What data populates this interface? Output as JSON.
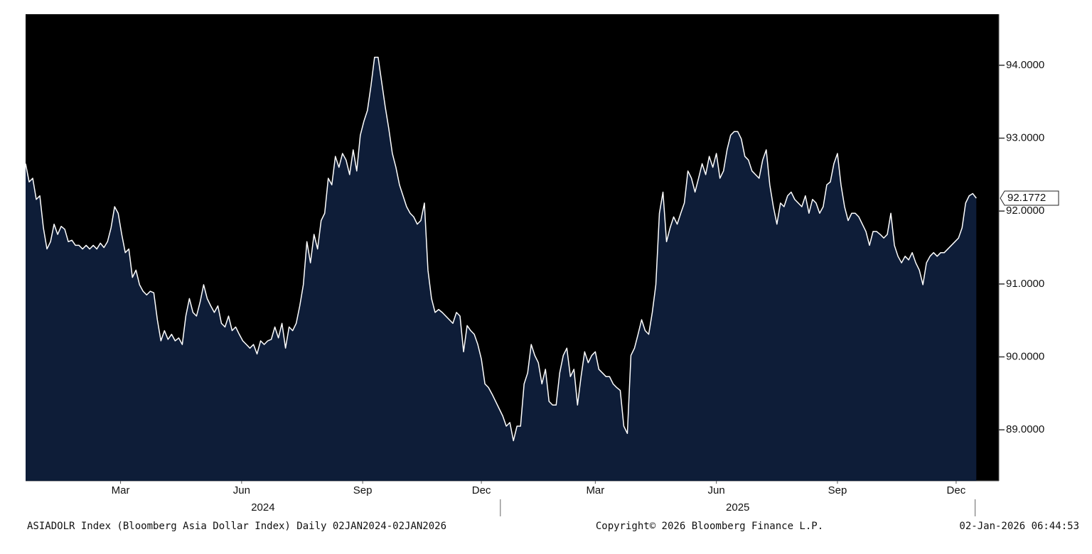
{
  "chart_data": {
    "type": "area",
    "footer_left": "ASIADOLR Index (Bloomberg Asia Dollar Index) Daily 02JAN2024-02JAN2026",
    "footer_center": "Copyright© 2026 Bloomberg Finance L.P.",
    "footer_right": "02-Jan-2026 06:44:53",
    "xlim": [
      2024,
      2026.05
    ],
    "ylim": [
      88.3,
      94.7
    ],
    "yticks": [
      {
        "value": 89,
        "label": "89.0000"
      },
      {
        "value": 90,
        "label": "90.0000"
      },
      {
        "value": 91,
        "label": "91.0000"
      },
      {
        "value": 92,
        "label": "92.0000"
      },
      {
        "value": 93,
        "label": "93.0000"
      },
      {
        "value": 94,
        "label": "94.0000"
      }
    ],
    "xticks": [
      {
        "value": 2024.2,
        "label": "Mar"
      },
      {
        "value": 2024.455,
        "label": "Jun"
      },
      {
        "value": 2024.71,
        "label": "Sep"
      },
      {
        "value": 2024.96,
        "label": "Dec"
      },
      {
        "value": 2025.2,
        "label": "Mar"
      },
      {
        "value": 2025.455,
        "label": "Jun"
      },
      {
        "value": 2025.71,
        "label": "Sep"
      },
      {
        "value": 2025.96,
        "label": "Dec"
      }
    ],
    "year_ticks": [
      {
        "value": 2024.5,
        "label": "2024"
      },
      {
        "value": 2025.5,
        "label": "2025"
      }
    ],
    "year_dividers": [
      2025,
      2026
    ],
    "series": [
      {
        "color": "#ffffff",
        "fill": "#0e1d38",
        "x": [
          2024,
          2024.0075,
          2024.015,
          2024.0225,
          2024.03,
          2024.0375,
          2024.045,
          2024.0525,
          2024.06,
          2024.0675,
          2024.075,
          2024.0825,
          2024.09,
          2024.0975,
          2024.105,
          2024.1125,
          2024.12,
          2024.1275,
          2024.135,
          2024.1425,
          2024.15,
          2024.1575,
          2024.165,
          2024.1725,
          2024.18,
          2024.1875,
          2024.195,
          2024.2025,
          2024.21,
          2024.2175,
          2024.225,
          2024.2325,
          2024.24,
          2024.2475,
          2024.255,
          2024.2625,
          2024.27,
          2024.2775,
          2024.285,
          2024.2925,
          2024.3,
          2024.3075,
          2024.315,
          2024.3225,
          2024.33,
          2024.3375,
          2024.345,
          2024.3525,
          2024.36,
          2024.3675,
          2024.375,
          2024.3825,
          2024.39,
          2024.3975,
          2024.405,
          2024.4125,
          2024.42,
          2024.4275,
          2024.435,
          2024.4425,
          2024.45,
          2024.4575,
          2024.465,
          2024.4725,
          2024.48,
          2024.4875,
          2024.495,
          2024.5025,
          2024.51,
          2024.5175,
          2024.525,
          2024.5325,
          2024.54,
          2024.5475,
          2024.555,
          2024.5625,
          2024.57,
          2024.5775,
          2024.585,
          2024.5925,
          2024.6,
          2024.6075,
          2024.615,
          2024.6225,
          2024.63,
          2024.6375,
          2024.645,
          2024.6525,
          2024.66,
          2024.6675,
          2024.675,
          2024.6825,
          2024.69,
          2024.6975,
          2024.705,
          2024.7125,
          2024.72,
          2024.7275,
          2024.735,
          2024.7425,
          2024.75,
          2024.7575,
          2024.765,
          2024.7725,
          2024.78,
          2024.7875,
          2024.795,
          2024.8025,
          2024.81,
          2024.8175,
          2024.825,
          2024.8325,
          2024.84,
          2024.8475,
          2024.855,
          2024.8625,
          2024.87,
          2024.8775,
          2024.885,
          2024.8925,
          2024.9,
          2024.9075,
          2024.915,
          2024.9225,
          2024.93,
          2024.9375,
          2024.945,
          2024.9525,
          2024.96,
          2024.9675,
          2024.975,
          2024.9825,
          2024.99,
          2024.9975,
          2025.005,
          2025.0125,
          2025.02,
          2025.0275,
          2025.035,
          2025.0425,
          2025.05,
          2025.0575,
          2025.065,
          2025.0725,
          2025.08,
          2025.0875,
          2025.095,
          2025.1025,
          2025.11,
          2025.1175,
          2025.125,
          2025.1325,
          2025.14,
          2025.1475,
          2025.155,
          2025.1625,
          2025.17,
          2025.1775,
          2025.185,
          2025.1925,
          2025.2,
          2025.2075,
          2025.215,
          2025.2225,
          2025.23,
          2025.2375,
          2025.245,
          2025.2525,
          2025.26,
          2025.2675,
          2025.275,
          2025.2825,
          2025.29,
          2025.2975,
          2025.305,
          2025.3125,
          2025.32,
          2025.3275,
          2025.335,
          2025.3425,
          2025.35,
          2025.3575,
          2025.365,
          2025.3725,
          2025.38,
          2025.3875,
          2025.395,
          2025.4025,
          2025.41,
          2025.4175,
          2025.425,
          2025.4325,
          2025.44,
          2025.4475,
          2025.455,
          2025.4625,
          2025.47,
          2025.4775,
          2025.485,
          2025.4925,
          2025.5,
          2025.5075,
          2025.515,
          2025.5225,
          2025.53,
          2025.5375,
          2025.545,
          2025.5525,
          2025.56,
          2025.5675,
          2025.575,
          2025.5825,
          2025.59,
          2025.5975,
          2025.605,
          2025.6125,
          2025.62,
          2025.6275,
          2025.635,
          2025.6425,
          2025.65,
          2025.6575,
          2025.665,
          2025.6725,
          2025.68,
          2025.6875,
          2025.695,
          2025.7025,
          2025.71,
          2025.7175,
          2025.725,
          2025.7325,
          2025.74,
          2025.7475,
          2025.755,
          2025.7625,
          2025.77,
          2025.7775,
          2025.785,
          2025.7925,
          2025.8,
          2025.8075,
          2025.815,
          2025.8225,
          2025.83,
          2025.8375,
          2025.845,
          2025.8525,
          2025.86,
          2025.8675,
          2025.875,
          2025.8825,
          2025.89,
          2025.8975,
          2025.905,
          2025.9125,
          2025.92,
          2025.9275,
          2025.935,
          2025.9425,
          2025.95,
          2025.9575,
          2025.965,
          2025.9725,
          2025.98,
          2025.9875,
          2025.995,
          2026.0025
        ],
        "values": [
          92.65,
          92.4,
          92.45,
          92.16,
          92.21,
          91.77,
          91.48,
          91.58,
          91.82,
          91.68,
          91.79,
          91.75,
          91.58,
          91.6,
          91.53,
          91.53,
          91.48,
          91.53,
          91.48,
          91.53,
          91.48,
          91.56,
          91.5,
          91.58,
          91.77,
          92.06,
          91.97,
          91.68,
          91.43,
          91.48,
          91.09,
          91.19,
          90.99,
          90.9,
          90.85,
          90.9,
          90.88,
          90.51,
          90.22,
          90.36,
          90.24,
          90.31,
          90.22,
          90.26,
          90.17,
          90.56,
          90.8,
          90.61,
          90.56,
          90.75,
          90.99,
          90.8,
          90.7,
          90.61,
          90.7,
          90.46,
          90.41,
          90.56,
          90.36,
          90.41,
          90.31,
          90.22,
          90.17,
          90.12,
          90.17,
          90.04,
          90.22,
          90.17,
          90.22,
          90.24,
          90.41,
          90.26,
          90.46,
          90.12,
          90.41,
          90.36,
          90.46,
          90.7,
          90.99,
          91.58,
          91.29,
          91.68,
          91.48,
          91.87,
          91.97,
          92.45,
          92.36,
          92.75,
          92.6,
          92.79,
          92.7,
          92.5,
          92.84,
          92.55,
          93.04,
          93.23,
          93.38,
          93.72,
          94.11,
          94.11,
          93.77,
          93.43,
          93.13,
          92.79,
          92.6,
          92.36,
          92.21,
          92.06,
          91.97,
          91.92,
          91.82,
          91.87,
          92.11,
          91.19,
          90.8,
          90.61,
          90.65,
          90.61,
          90.56,
          90.51,
          90.46,
          90.61,
          90.56,
          90.07,
          90.43,
          90.36,
          90.31,
          90.17,
          89.97,
          89.63,
          89.58,
          89.49,
          89.39,
          89.29,
          89.19,
          89.05,
          89.1,
          88.85,
          89.05,
          89.05,
          89.63,
          89.78,
          90.17,
          90.02,
          89.92,
          89.63,
          89.83,
          89.39,
          89.34,
          89.34,
          89.78,
          90.02,
          90.12,
          89.73,
          89.83,
          89.34,
          89.73,
          90.07,
          89.92,
          90.02,
          90.07,
          89.83,
          89.78,
          89.73,
          89.73,
          89.63,
          89.58,
          89.54,
          89.05,
          88.95,
          90.02,
          90.12,
          90.31,
          90.51,
          90.36,
          90.31,
          90.61,
          90.99,
          91.97,
          92.26,
          91.58,
          91.77,
          91.92,
          91.82,
          91.97,
          92.11,
          92.55,
          92.45,
          92.26,
          92.45,
          92.65,
          92.5,
          92.75,
          92.6,
          92.79,
          92.45,
          92.55,
          92.84,
          93.04,
          93.09,
          93.09,
          92.99,
          92.75,
          92.7,
          92.55,
          92.5,
          92.45,
          92.7,
          92.84,
          92.36,
          92.06,
          91.82,
          92.11,
          92.06,
          92.21,
          92.26,
          92.16,
          92.11,
          92.06,
          92.21,
          91.97,
          92.16,
          92.11,
          91.97,
          92.06,
          92.36,
          92.4,
          92.65,
          92.79,
          92.36,
          92.06,
          91.87,
          91.97,
          91.97,
          91.92,
          91.82,
          91.72,
          91.53,
          91.72,
          91.72,
          91.68,
          91.63,
          91.68,
          91.97,
          91.53,
          91.38,
          91.29,
          91.38,
          91.33,
          91.43,
          91.29,
          91.19,
          90.99,
          91.29,
          91.38,
          91.43,
          91.38,
          91.43,
          91.43,
          91.48,
          91.53,
          91.58,
          91.63,
          91.77,
          92.11,
          92.21,
          92.24,
          92.1772
        ]
      }
    ]
  }
}
